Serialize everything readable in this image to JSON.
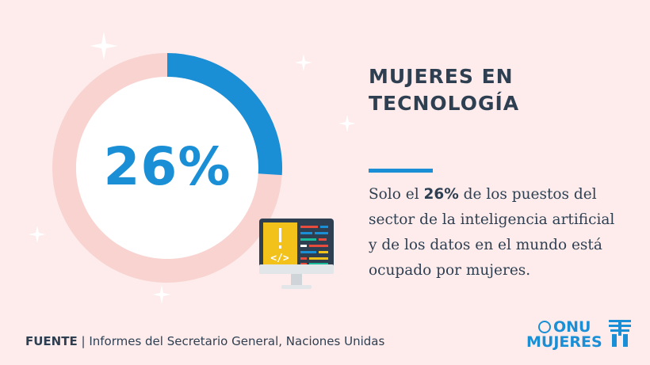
{
  "stat": {
    "percent": 26,
    "label": "26%"
  },
  "title": {
    "line1": "MUJERES EN",
    "line2": "TECNOLOGÍA"
  },
  "body": {
    "prefix": "Solo el ",
    "highlight": "26%",
    "suffix": " de los puestos del sector de la inteligencia artificial y de los datos en el mundo está ocupado por mujeres."
  },
  "footer": {
    "label": "FUENTE",
    "separator": " | ",
    "source": "Informes del Secretario General, Naciones Unidas"
  },
  "logo": {
    "line1": "ONU",
    "line2": "MUJERES"
  },
  "icons": [
    "sparkle-icon",
    "computer-code-icon",
    "un-emblem-icon"
  ],
  "colors": {
    "accent": "#1a8fd6",
    "background": "#fdeceb",
    "ring": "#f8d3d0",
    "text": "#2e3f52",
    "yellow": "#f2c21b"
  }
}
